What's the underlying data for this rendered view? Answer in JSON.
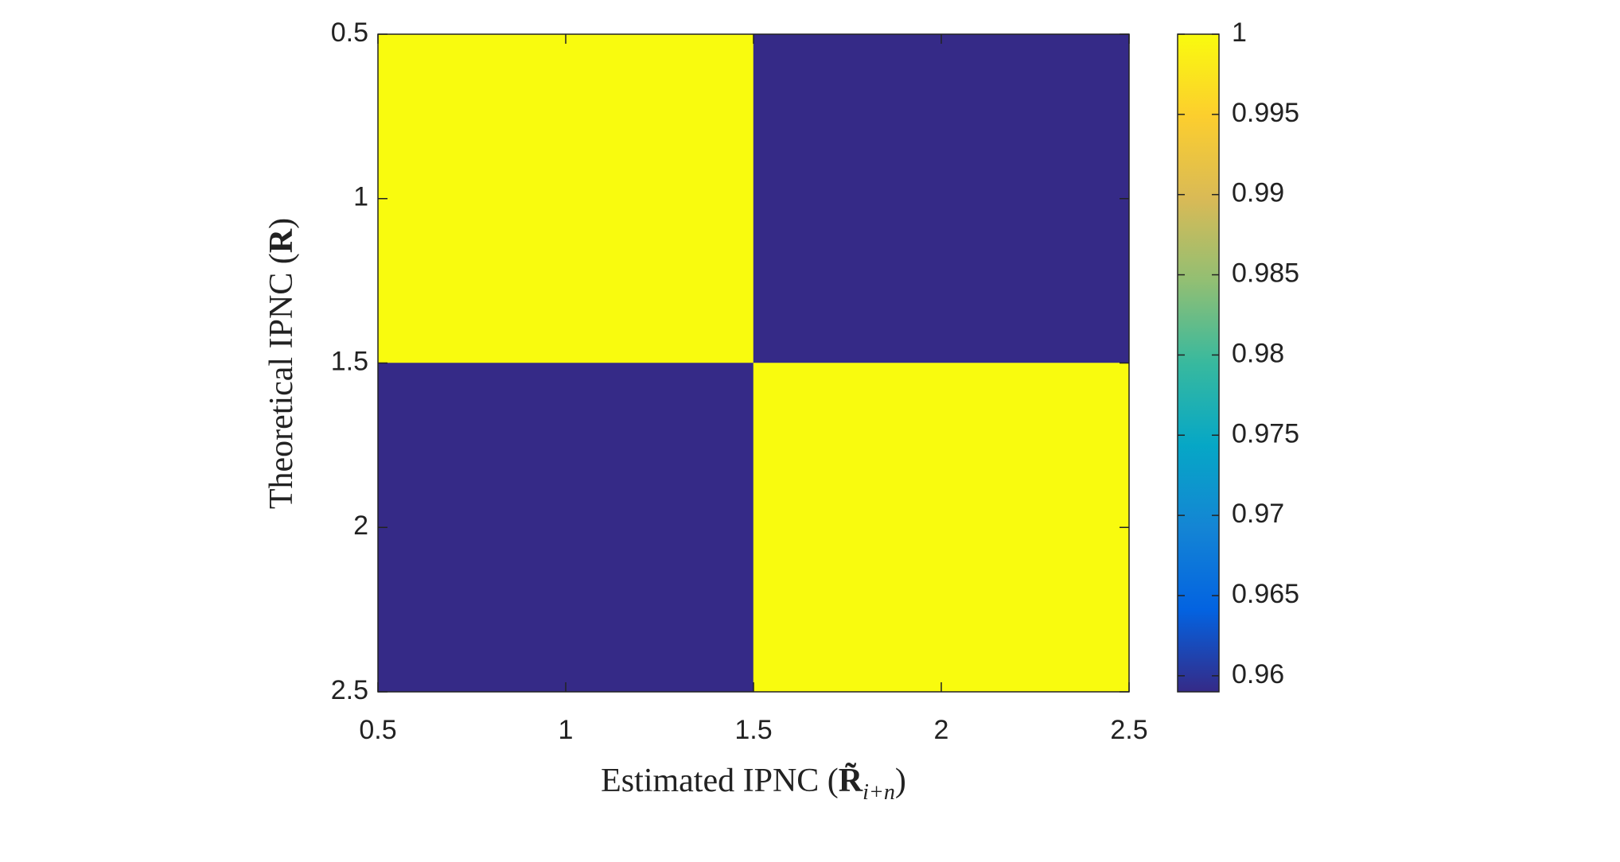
{
  "chart_data": {
    "type": "heatmap",
    "x_label_parts": [
      "Estimated IPNC (",
      "R̃",
      "i+n",
      ")"
    ],
    "y_label_parts": [
      "Theoretical IPNC (",
      "R",
      ")"
    ],
    "x": [
      1,
      2
    ],
    "y": [
      1,
      2
    ],
    "values": [
      [
        1,
        0.959
      ],
      [
        0.959,
        1
      ]
    ],
    "xlim": [
      0.5,
      2.5
    ],
    "ylim": [
      0.5,
      2.5
    ],
    "y_reversed": true,
    "xticks": [
      0.5,
      1,
      1.5,
      2,
      2.5
    ],
    "yticks": [
      0.5,
      1,
      1.5,
      2,
      2.5
    ],
    "colormap": [
      "#352a87",
      "#0363e1",
      "#1485d4",
      "#06a7c6",
      "#38b99e",
      "#92bf73",
      "#d9ba56",
      "#fcce2e",
      "#f9fb0e"
    ],
    "colorbar": {
      "clim": [
        0.959,
        1
      ],
      "ticks": [
        0.96,
        0.965,
        0.97,
        0.975,
        0.98,
        0.985,
        0.99,
        0.995,
        1
      ]
    }
  }
}
